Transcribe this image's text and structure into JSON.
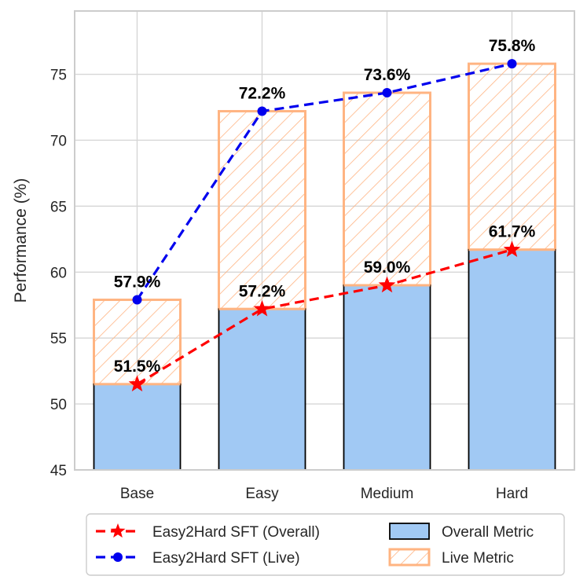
{
  "chart_data": {
    "type": "bar",
    "categories": [
      "Base",
      "Easy",
      "Medium",
      "Hard"
    ],
    "ylabel": "Performance (%)",
    "xlabel": "",
    "ylim": [
      45,
      79.8
    ],
    "yticks": [
      45,
      50,
      55,
      60,
      65,
      70,
      75
    ],
    "grid": true,
    "bars": [
      {
        "name": "Overall Metric",
        "values": [
          51.5,
          57.2,
          59.0,
          61.7
        ],
        "color": "#a1c9f4",
        "edge": "#000000"
      },
      {
        "name": "Live Metric",
        "values": [
          57.9,
          72.2,
          73.6,
          75.8
        ],
        "color": "#ffb482",
        "hatch": "diagonal",
        "stacked_from": "Overall Metric"
      }
    ],
    "series": [
      {
        "name": "Easy2Hard SFT (Overall)",
        "type": "line",
        "marker": "star",
        "dash": "dashed",
        "color": "#ff0000",
        "values": [
          51.5,
          57.2,
          59.0,
          61.7
        ],
        "labels": [
          "51.5%",
          "57.2%",
          "59.0%",
          "61.7%"
        ]
      },
      {
        "name": "Easy2Hard SFT (Live)",
        "type": "line",
        "marker": "circle",
        "dash": "dashed",
        "color": "#0000ee",
        "values": [
          57.9,
          72.2,
          73.6,
          75.8
        ],
        "labels": [
          "57.9%",
          "72.2%",
          "73.6%",
          "75.8%"
        ]
      }
    ],
    "legend": {
      "placement": "bottom-center",
      "entries": [
        "Easy2Hard SFT (Overall)",
        "Easy2Hard SFT (Live)",
        "Overall Metric",
        "Live Metric"
      ]
    }
  }
}
